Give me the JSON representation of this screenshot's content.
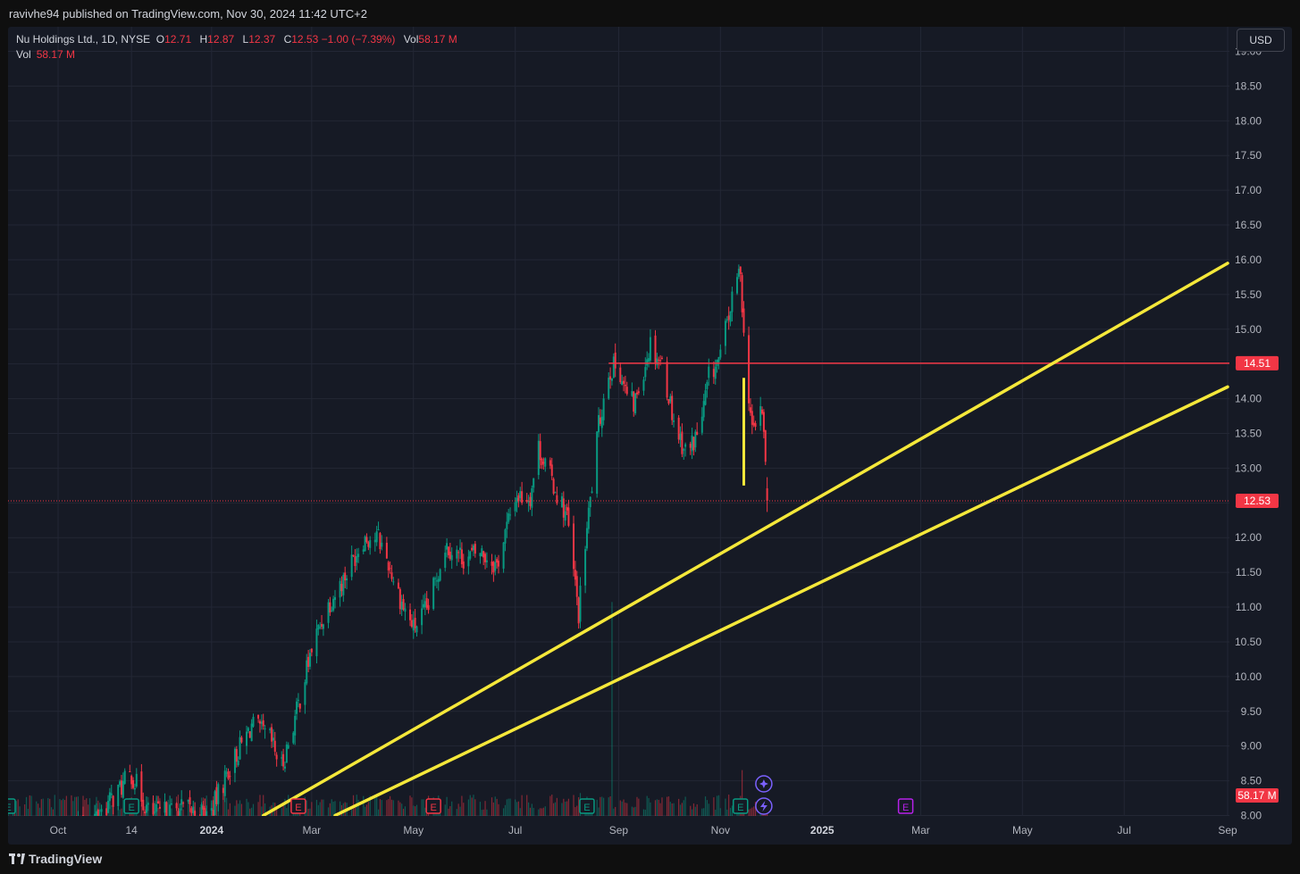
{
  "publisher_line": "ravivhe94 published on TradingView.com, Nov 30, 2024 11:42 UTC+2",
  "legend": {
    "symbol": "Nu Holdings Ltd., 1D, NYSE",
    "o_label": "O",
    "o_val": "12.71",
    "h_label": "H",
    "h_val": "12.87",
    "l_label": "L",
    "l_val": "12.37",
    "c_label": "C",
    "c_val": "12.53",
    "change": "−1.00 (−7.39%)",
    "vol_label": "Vol",
    "vol_val": "58.17 M",
    "vol_row_label": "Vol",
    "vol_row_val": "58.17 M"
  },
  "currency_button": "USD",
  "footer_brand": "TradingView",
  "colors": {
    "background": "#161a25",
    "up": "#089981",
    "down": "#f23645",
    "trendline": "#f5e83a",
    "resistance": "#f23645",
    "axis_text": "#b2b5be",
    "grid": "#232735"
  },
  "chart_data": {
    "type": "candlestick",
    "symbol": "Nu Holdings Ltd.",
    "interval": "1D",
    "exchange": "NYSE",
    "currency": "USD",
    "x_range": [
      "2023-09-01",
      "2025-09-01"
    ],
    "ylim": [
      8.0,
      19.0
    ],
    "y_ticks": [
      "19.00",
      "18.50",
      "18.00",
      "17.50",
      "17.00",
      "16.50",
      "16.00",
      "15.50",
      "15.00",
      "14.50",
      "14.00",
      "13.50",
      "13.00",
      "12.50",
      "12.00",
      "11.50",
      "11.00",
      "10.50",
      "10.00",
      "9.50",
      "9.00",
      "8.50",
      "8.00"
    ],
    "x_ticks": [
      {
        "date": "2023-10-01",
        "label": "Oct"
      },
      {
        "date": "2023-11-14",
        "label": "14"
      },
      {
        "date": "2024-01-01",
        "label": "2024"
      },
      {
        "date": "2024-03-01",
        "label": "Mar"
      },
      {
        "date": "2024-05-01",
        "label": "May"
      },
      {
        "date": "2024-07-01",
        "label": "Jul"
      },
      {
        "date": "2024-09-01",
        "label": "Sep"
      },
      {
        "date": "2024-11-01",
        "label": "Nov"
      },
      {
        "date": "2025-01-01",
        "label": "2025"
      },
      {
        "date": "2025-03-01",
        "label": "Mar"
      },
      {
        "date": "2025-05-01",
        "label": "May"
      },
      {
        "date": "2025-07-01",
        "label": "Jul"
      },
      {
        "date": "2025-09-01",
        "label": "Sep"
      }
    ],
    "price_anchors": [
      [
        "2023-09-01",
        7.5
      ],
      [
        "2023-10-20",
        7.9
      ],
      [
        "2023-11-01",
        8.2
      ],
      [
        "2023-11-14",
        8.6
      ],
      [
        "2023-11-25",
        8.0
      ],
      [
        "2023-12-15",
        8.1
      ],
      [
        "2023-12-31",
        8.0
      ],
      [
        "2024-01-10",
        8.6
      ],
      [
        "2024-01-25",
        9.3
      ],
      [
        "2024-02-05",
        9.1
      ],
      [
        "2024-02-12",
        8.7
      ],
      [
        "2024-02-20",
        9.4
      ],
      [
        "2024-03-01",
        10.4
      ],
      [
        "2024-03-10",
        11.0
      ],
      [
        "2024-03-20",
        11.4
      ],
      [
        "2024-04-01",
        12.0
      ],
      [
        "2024-04-10",
        12.0
      ],
      [
        "2024-04-15",
        11.7
      ],
      [
        "2024-04-25",
        11.0
      ],
      [
        "2024-05-01",
        10.7
      ],
      [
        "2024-05-10",
        11.0
      ],
      [
        "2024-05-20",
        11.9
      ],
      [
        "2024-06-01",
        11.7
      ],
      [
        "2024-06-10",
        11.8
      ],
      [
        "2024-06-20",
        11.6
      ],
      [
        "2024-07-01",
        12.6
      ],
      [
        "2024-07-10",
        12.6
      ],
      [
        "2024-07-15",
        13.3
      ],
      [
        "2024-07-25",
        12.7
      ],
      [
        "2024-08-01",
        12.3
      ],
      [
        "2024-08-05",
        11.5
      ],
      [
        "2024-08-08",
        10.9
      ],
      [
        "2024-08-12",
        11.9
      ],
      [
        "2024-08-20",
        13.6
      ],
      [
        "2024-08-26",
        14.4
      ],
      [
        "2024-09-01",
        14.5
      ],
      [
        "2024-09-05",
        14.1
      ],
      [
        "2024-09-10",
        13.9
      ],
      [
        "2024-09-20",
        14.8
      ],
      [
        "2024-09-27",
        14.5
      ],
      [
        "2024-10-05",
        13.6
      ],
      [
        "2024-10-12",
        13.2
      ],
      [
        "2024-10-20",
        13.6
      ],
      [
        "2024-10-25",
        14.3
      ],
      [
        "2024-11-01",
        14.6
      ],
      [
        "2024-11-05",
        15.1
      ],
      [
        "2024-11-10",
        15.6
      ],
      [
        "2024-11-13",
        15.9
      ],
      [
        "2024-11-15",
        14.9
      ],
      [
        "2024-11-20",
        13.5
      ],
      [
        "2024-11-25",
        13.9
      ],
      [
        "2024-11-27",
        13.5
      ],
      [
        "2024-11-29",
        12.6
      ]
    ],
    "last_candle": {
      "date": "2024-11-29",
      "open": 12.71,
      "high": 12.87,
      "low": 12.37,
      "close": 12.53
    },
    "volume_last": "58.17 M",
    "volume_spikes": [
      {
        "date": "2024-08-28",
        "scale": 0.28
      },
      {
        "date": "2024-08-09",
        "scale": 0.03
      },
      {
        "date": "2024-11-14",
        "scale": 0.06
      }
    ],
    "price_lines": [
      {
        "price": 14.51,
        "label": "14.51",
        "color": "#f23645",
        "style": "solid",
        "from": "2024-08-26"
      },
      {
        "price": 12.53,
        "label": "12.53",
        "color": "#f23645",
        "style": "dotted",
        "from": "2023-09-01"
      }
    ],
    "volume_badge": {
      "label": "58.17 M",
      "color": "#f23645"
    },
    "trendlines": [
      {
        "from": [
          "2024-02-01",
          8.0
        ],
        "to": [
          "2025-09-01",
          15.95
        ],
        "color": "#f5e83a"
      },
      {
        "from": [
          "2024-03-15",
          8.0
        ],
        "to": [
          "2025-09-01",
          14.17
        ],
        "color": "#f5e83a"
      }
    ],
    "vertical_marker": {
      "date": "2024-11-15",
      "from": 14.3,
      "to": 12.75,
      "color": "#f5e83a"
    },
    "event_markers": [
      {
        "date": "2023-09-01",
        "type": "earnings",
        "color": "#089981"
      },
      {
        "date": "2023-11-14",
        "type": "earnings",
        "color": "#089981"
      },
      {
        "date": "2024-02-22",
        "type": "earnings",
        "color": "#f23645"
      },
      {
        "date": "2024-05-13",
        "type": "earnings",
        "color": "#f23645"
      },
      {
        "date": "2024-08-13",
        "type": "earnings",
        "color": "#089981"
      },
      {
        "date": "2024-11-13",
        "type": "earnings",
        "color": "#089981"
      },
      {
        "date": "2025-02-20",
        "type": "earnings",
        "color": "#b621e9"
      },
      {
        "date": "2024-11-27",
        "type": "dividend",
        "color": "#7b61ff"
      },
      {
        "date": "2024-11-27",
        "type": "split",
        "color": "#7b61ff"
      }
    ]
  }
}
